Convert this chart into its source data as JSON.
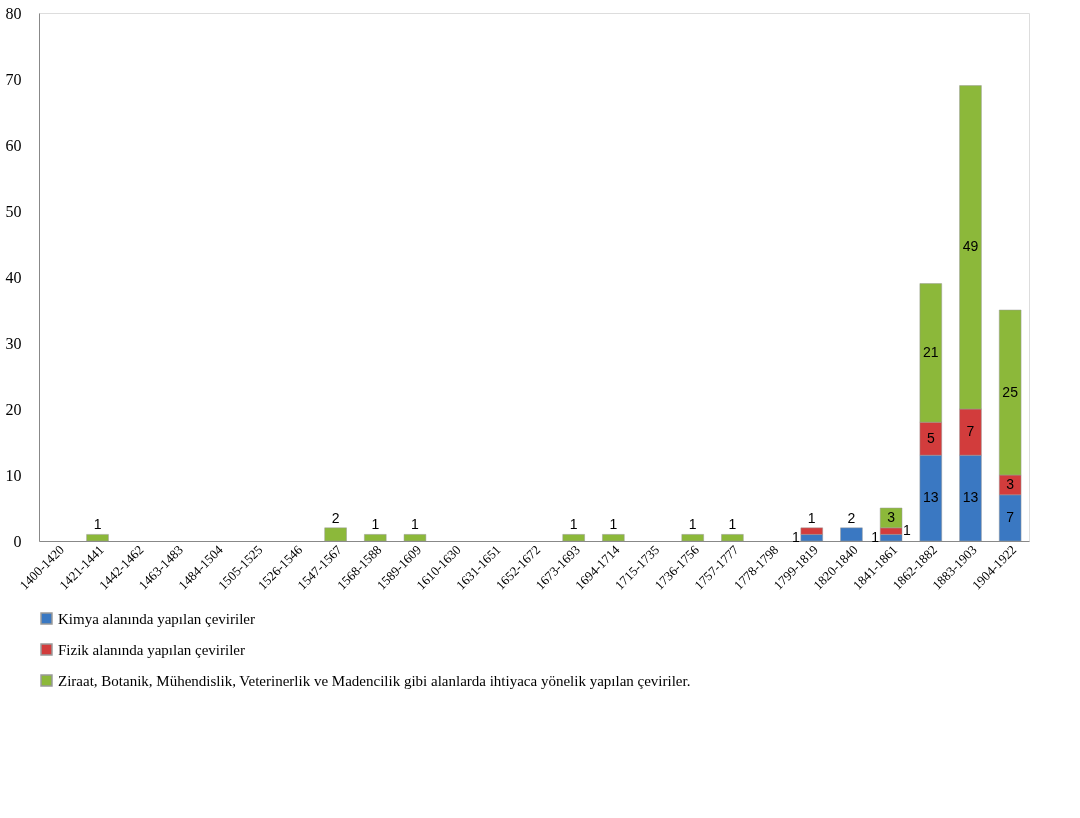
{
  "chart_data": {
    "type": "bar",
    "stacked": true,
    "data_labels": true,
    "grid": false,
    "legend": "bottom",
    "categories": [
      "1400-1420",
      "1421-1441",
      "1442-1462",
      "1463-1483",
      "1484-1504",
      "1505-1525",
      "1526-1546",
      "1547-1567",
      "1568-1588",
      "1589-1609",
      "1610-1630",
      "1631-1651",
      "1652-1672",
      "1673-1693",
      "1694-1714",
      "1715-1735",
      "1736-1756",
      "1757-1777",
      "1778-1798",
      "1799-1819",
      "1820-1840",
      "1841-1861",
      "1862-1882",
      "1883-1903",
      "1904-1922"
    ],
    "series": [
      {
        "name": "Kimya alanında yapılan çeviriler",
        "color": "#3a78c2",
        "values": [
          null,
          null,
          null,
          null,
          null,
          null,
          null,
          null,
          null,
          null,
          null,
          null,
          null,
          null,
          null,
          null,
          null,
          null,
          null,
          1,
          2,
          1,
          13,
          13,
          7
        ]
      },
      {
        "name": "Fizik alanında yapılan çeviriler",
        "color": "#d23c3c",
        "values": [
          null,
          null,
          null,
          null,
          null,
          null,
          null,
          null,
          null,
          null,
          null,
          null,
          null,
          null,
          null,
          null,
          null,
          null,
          null,
          1,
          null,
          1,
          5,
          7,
          3
        ]
      },
      {
        "name": "Ziraat, Botanik, Mühendislik, Veterinerlik ve Madencilik gibi alanlarda ihtiyaca yönelik yapılan çeviriler.",
        "color": "#8cb83a",
        "values": [
          null,
          1,
          null,
          null,
          null,
          null,
          null,
          2,
          1,
          1,
          null,
          null,
          null,
          1,
          1,
          null,
          1,
          1,
          null,
          null,
          null,
          3,
          21,
          49,
          25
        ]
      }
    ],
    "ylim": [
      0,
      80
    ],
    "yticks": [
      0,
      10,
      20,
      30,
      40,
      50,
      60,
      70,
      80
    ]
  }
}
